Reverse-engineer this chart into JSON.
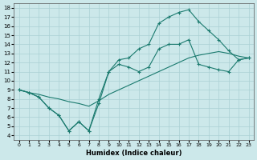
{
  "xlabel": "Humidex (Indice chaleur)",
  "background_color": "#cce8ea",
  "grid_color": "#aad0d4",
  "line_color": "#1a7a6e",
  "xlim": [
    -0.5,
    23.5
  ],
  "ylim": [
    3.5,
    18.5
  ],
  "xticks": [
    0,
    1,
    2,
    3,
    4,
    5,
    6,
    7,
    8,
    9,
    10,
    11,
    12,
    13,
    14,
    15,
    16,
    17,
    18,
    19,
    20,
    21,
    22,
    23
  ],
  "yticks": [
    4,
    5,
    6,
    7,
    8,
    9,
    10,
    11,
    12,
    13,
    14,
    15,
    16,
    17,
    18
  ],
  "line1_x": [
    0,
    1,
    2,
    3,
    4,
    5,
    6,
    7,
    8,
    9,
    10,
    11,
    12,
    13,
    14,
    15,
    16,
    17,
    18,
    19,
    20,
    21,
    22,
    23
  ],
  "line1_y": [
    9.0,
    8.7,
    8.2,
    7.0,
    6.2,
    4.5,
    5.5,
    4.5,
    7.5,
    11.0,
    12.3,
    12.5,
    13.5,
    14.0,
    16.3,
    17.0,
    17.5,
    17.8,
    16.5,
    15.5,
    14.5,
    13.3,
    12.3,
    12.5
  ],
  "line2_x": [
    0,
    1,
    2,
    3,
    4,
    5,
    6,
    7,
    8,
    9,
    10,
    11,
    12,
    13,
    14,
    15,
    16,
    17,
    18,
    19,
    20,
    21,
    22,
    23
  ],
  "line2_y": [
    9.0,
    8.7,
    8.5,
    8.2,
    8.0,
    7.7,
    7.5,
    7.2,
    7.8,
    8.5,
    9.0,
    9.5,
    10.0,
    10.5,
    11.0,
    11.5,
    12.0,
    12.5,
    12.8,
    13.0,
    13.2,
    13.0,
    12.7,
    12.5
  ],
  "line3_x": [
    0,
    1,
    2,
    3,
    4,
    5,
    6,
    7,
    8,
    9,
    10,
    11,
    12,
    13,
    14,
    15,
    16,
    17,
    18,
    19,
    20,
    21,
    22,
    23
  ],
  "line3_y": [
    9.0,
    8.7,
    8.2,
    7.0,
    6.2,
    4.5,
    5.5,
    4.5,
    8.0,
    11.0,
    11.8,
    11.5,
    11.0,
    11.5,
    13.5,
    14.0,
    14.0,
    14.5,
    11.8,
    11.5,
    11.2,
    11.0,
    12.3,
    12.5
  ],
  "marker": "+",
  "markersize": 3,
  "linewidth": 0.8
}
